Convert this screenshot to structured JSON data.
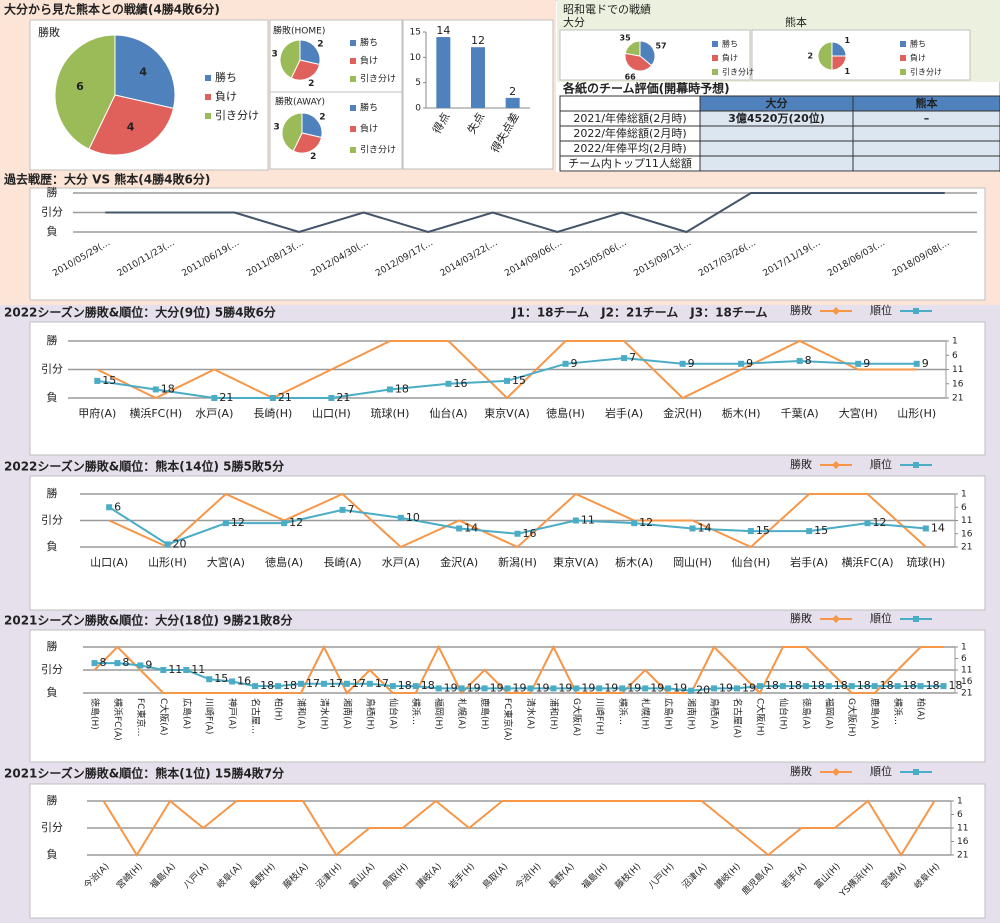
{
  "head_to_head": {
    "title": "大分から見た熊本との戦績(4勝4敗6分)"
  },
  "stadium": {
    "title": "昭和電ドでの戦績"
  },
  "table": {
    "title": "各紙のチーム評価(開幕時予想)",
    "columns": [
      "大分",
      "熊本"
    ],
    "rows": [
      {
        "label": "2021/年俸総額(2月時)",
        "values": [
          "3億4520万(20位)",
          "–"
        ]
      },
      {
        "label": "2022/年俸総額(2月時)"
      },
      {
        "label": "2022/年俸平均(2月時)"
      },
      {
        "label": "チーム内トップ11人総額"
      }
    ]
  },
  "chart_data": [
    {
      "type": "pie",
      "title": "勝敗",
      "categories": [
        "勝ち",
        "負け",
        "引き分け"
      ],
      "values": [
        4,
        4,
        6
      ],
      "colors": [
        "#4f81bd",
        "#e0605c",
        "#9bbb59"
      ]
    },
    {
      "type": "pie",
      "title": "勝敗(HOME)",
      "categories": [
        "勝ち",
        "負け",
        "引き分け"
      ],
      "values": [
        2,
        2,
        3
      ],
      "colors": [
        "#4f81bd",
        "#e0605c",
        "#9bbb59"
      ]
    },
    {
      "type": "pie",
      "title": "勝敗(AWAY)",
      "categories": [
        "勝ち",
        "負け",
        "引き分け"
      ],
      "values": [
        2,
        2,
        3
      ],
      "colors": [
        "#4f81bd",
        "#e0605c",
        "#9bbb59"
      ]
    },
    {
      "type": "bar",
      "categories": [
        "得点",
        "失点",
        "得失点差"
      ],
      "values": [
        14,
        12,
        2
      ],
      "color": "#4f81bd",
      "ylim": [
        0,
        15
      ],
      "yticks": [
        0,
        5,
        10,
        15
      ],
      "grid": false
    },
    {
      "type": "pie",
      "title": "大分",
      "categories": [
        "勝ち",
        "負け",
        "引き分け"
      ],
      "values": [
        57,
        66,
        35
      ],
      "colors": [
        "#4f81bd",
        "#e0605c",
        "#9bbb59"
      ]
    },
    {
      "type": "pie",
      "title": "熊本",
      "categories": [
        "勝ち",
        "負け",
        "引き分け"
      ],
      "values": [
        1,
        1,
        2
      ],
      "colors": [
        "#4f81bd",
        "#e0605c",
        "#9bbb59"
      ]
    },
    {
      "type": "line",
      "title": "過去戦歴：大分 VS 熊本(4勝4敗6分)",
      "categories": [
        "2010/05/29(…",
        "2010/11/23(…",
        "2011/06/19(…",
        "2011/08/13(…",
        "2012/04/30(…",
        "2012/09/17(…",
        "2014/03/22(…",
        "2014/09/06(…",
        "2015/05/06(…",
        "2015/09/13(…",
        "2017/03/26(…",
        "2017/11/19(…",
        "2018/06/03(…",
        "2018/09/08(…"
      ],
      "values": [
        0,
        0,
        0,
        -1,
        0,
        -1,
        0,
        -1,
        0,
        -1,
        1,
        1,
        1,
        1
      ],
      "color": "#44546a",
      "ylim": [
        -1,
        1
      ],
      "yticks": [
        {
          "value": 1,
          "label": "勝"
        },
        {
          "value": 0,
          "label": "引分"
        },
        {
          "value": -1,
          "label": "負"
        }
      ],
      "grid": true
    },
    {
      "type": "combo",
      "title": "2022シーズン勝敗&順位：大分(9位) 5勝4敗6分",
      "note": "J1：18チーム　J2：21チーム　J3：18チーム",
      "categories": [
        "甲府(A)",
        "横浜FC(H)",
        "水戸(A)",
        "長崎(H)",
        "山口(H)",
        "琉球(H)",
        "仙台(A)",
        "東京V(A)",
        "徳島(H)",
        "岩手(A)",
        "金沢(H)",
        "栃木(H)",
        "千葉(A)",
        "大宮(H)",
        "山形(H)"
      ],
      "series": [
        {
          "name": "勝敗",
          "color": "#f79646",
          "values": [
            0,
            -1,
            0,
            -1,
            0,
            1,
            1,
            -1,
            1,
            1,
            -1,
            0,
            1,
            0,
            0
          ]
        },
        {
          "name": "順位",
          "color": "#4bacc6",
          "axis": "y2",
          "data_labels": true,
          "values": [
            15,
            18,
            21,
            21,
            21,
            18,
            16,
            15,
            9,
            7,
            9,
            9,
            8,
            9,
            9
          ]
        }
      ],
      "ylim": [
        -1,
        1
      ],
      "yticks": [
        {
          "value": 1,
          "label": "勝"
        },
        {
          "value": 0,
          "label": "引分"
        },
        {
          "value": -1,
          "label": "負"
        }
      ],
      "y2lim": [
        21,
        1
      ],
      "y2ticks": [
        1,
        6,
        11,
        16,
        21
      ],
      "grid": true
    },
    {
      "type": "combo",
      "title": "2022シーズン勝敗&順位：熊本(14位) 5勝5敗5分",
      "categories": [
        "山口(A)",
        "山形(H)",
        "大宮(A)",
        "徳島(A)",
        "長崎(A)",
        "水戸(A)",
        "金沢(A)",
        "新潟(H)",
        "東京V(A)",
        "栃木(A)",
        "岡山(H)",
        "仙台(H)",
        "岩手(A)",
        "横浜FC(A)",
        "琉球(H)"
      ],
      "series": [
        {
          "name": "勝敗",
          "color": "#f79646",
          "values": [
            0,
            -1,
            1,
            0,
            1,
            -1,
            0,
            -1,
            1,
            0,
            0,
            -1,
            1,
            1,
            -1
          ]
        },
        {
          "name": "順位",
          "color": "#4bacc6",
          "axis": "y2",
          "data_labels": true,
          "values": [
            6,
            20,
            12,
            12,
            7,
            10,
            14,
            16,
            11,
            12,
            14,
            15,
            15,
            12,
            14
          ]
        }
      ],
      "ylim": [
        -1,
        1
      ],
      "yticks": [
        {
          "value": 1,
          "label": "勝"
        },
        {
          "value": 0,
          "label": "引分"
        },
        {
          "value": -1,
          "label": "負"
        }
      ],
      "y2lim": [
        21,
        1
      ],
      "y2ticks": [
        1,
        6,
        11,
        16,
        21
      ],
      "grid": true
    },
    {
      "type": "combo",
      "title": "2021シーズン勝敗&順位：大分(18位) 9勝21敗8分",
      "categories": [
        "徳島(H)",
        "横浜FC(A)",
        "FC東京…",
        "C大阪(A)",
        "広島(A)",
        "川崎F(A)",
        "神戸(A)",
        "名古屋…",
        "柏(H)",
        "浦和(A)",
        "清水(H)",
        "湘南(A)",
        "鳥栖(H)",
        "仙台(A)",
        "横浜…",
        "福岡(H)",
        "札幌(A)",
        "鹿島(H)",
        "FC東京(A)",
        "清水(A)",
        "浦和(H)",
        "G大阪(A)",
        "川崎F(H)",
        "横浜…",
        "札幌(H)",
        "広島(H)",
        "湘南(H)",
        "鳥栖(A)",
        "名古屋(A)",
        "C大阪(H)",
        "仙台(H)",
        "徳島(A)",
        "福岡(A)",
        "G大阪(H)",
        "鹿島(A)",
        "横浜…",
        "柏(A)",
        null
      ],
      "series": [
        {
          "name": "勝敗",
          "color": "#f79646",
          "values": [
            0,
            1,
            0,
            -1,
            -1,
            -1,
            -1,
            -1,
            -1,
            -1,
            1,
            -1,
            0,
            -1,
            -1,
            1,
            -1,
            0,
            -1,
            -1,
            1,
            -1,
            -1,
            -1,
            0,
            -1,
            -1,
            1,
            0,
            -1,
            1,
            1,
            0,
            -1,
            -1,
            0,
            1,
            1
          ]
        },
        {
          "name": "順位",
          "color": "#4bacc6",
          "axis": "y2",
          "data_labels": true,
          "values": [
            8,
            8,
            9,
            11,
            11,
            15,
            16,
            18,
            18,
            17,
            17,
            17,
            17,
            18,
            18,
            19,
            19,
            19,
            19,
            19,
            19,
            19,
            19,
            19,
            19,
            19,
            20,
            19,
            19,
            18,
            18,
            18,
            18,
            18,
            18,
            18,
            18,
            18
          ]
        }
      ],
      "ylim": [
        -1,
        1
      ],
      "yticks": [
        {
          "value": 1,
          "label": "勝"
        },
        {
          "value": 0,
          "label": "引分"
        },
        {
          "value": -1,
          "label": "負"
        }
      ],
      "y2lim": [
        21,
        1
      ],
      "y2ticks": [
        1,
        6,
        11,
        16,
        21
      ],
      "grid": true
    },
    {
      "type": "combo",
      "title": "2021シーズン勝敗&順位：熊本(1位) 15勝4敗7分",
      "categories": [
        "今治(A)",
        "宮崎(H)",
        "福島(A)",
        "八戸(A)",
        "岐阜(A)",
        "長野(H)",
        "藤枝(A)",
        "沼津(H)",
        "富山(A)",
        "鳥取(H)",
        "讃岐(A)",
        "岩手(H)",
        "鳥取(A)",
        "今治(H)",
        "長野(A)",
        "福島(H)",
        "藤枝(H)",
        "八戸(H)",
        "沼津(A)",
        "讃岐(H)",
        "鹿児島(A)",
        "岩手(A)",
        "富山(H)",
        "YS横浜(H)",
        "宮崎(A)",
        "岐阜(H)"
      ],
      "series": [
        {
          "name": "勝敗",
          "color": "#f79646",
          "values": [
            1,
            -1,
            1,
            0,
            1,
            1,
            1,
            -1,
            0,
            0,
            1,
            0,
            1,
            1,
            1,
            1,
            1,
            1,
            1,
            0,
            -1,
            0,
            0,
            1,
            -1,
            1
          ]
        },
        {
          "name": "順位",
          "color": "#4bacc6",
          "axis": "y2",
          "data_labels": true,
          "values": [
            null,
            null,
            null,
            null,
            null,
            null,
            null,
            null,
            null,
            null,
            null,
            null,
            null,
            null,
            null,
            null,
            null,
            null,
            null,
            null,
            null,
            null,
            null,
            null,
            null,
            null
          ]
        }
      ],
      "ylim": [
        -1,
        1
      ],
      "yticks": [
        {
          "value": 1,
          "label": "勝"
        },
        {
          "value": 0,
          "label": "引分"
        },
        {
          "value": -1,
          "label": "負"
        }
      ],
      "y2lim": [
        21,
        1
      ],
      "y2ticks": [
        1,
        6,
        11,
        16,
        21
      ],
      "grid": true
    }
  ]
}
